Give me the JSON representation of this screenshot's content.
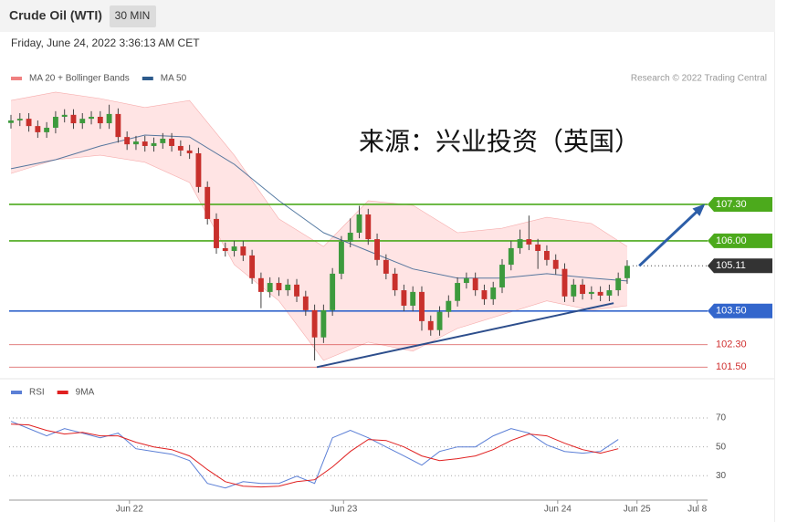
{
  "chart_data": [
    {
      "type": "candlestick",
      "title": "Crude Oil (WTI)",
      "timeframe": "30 MIN",
      "subtitle": "Friday, June 24, 2022 3:36:13 AM CET",
      "source": "Research © 2022 Trading Central",
      "annotation": "来源：兴业投资（英国）",
      "xlim": [
        0,
        78
      ],
      "ylim": [
        101.25,
        111.33
      ],
      "xticks": [
        {
          "value": 13.27,
          "label": "Jun 22"
        },
        {
          "value": 37.24,
          "label": "Jun 23"
        },
        {
          "value": 61.22,
          "label": "Jun 24"
        },
        {
          "value": 70.1,
          "label": "Jun 25"
        },
        {
          "value": 76.84,
          "label": "Jul 8"
        }
      ],
      "up_color": "#3d9a3d",
      "down_color": "#c8302c",
      "x": [
        0,
        1,
        2,
        3,
        4,
        5,
        6,
        7,
        8,
        9,
        10,
        11,
        12,
        13,
        14,
        15,
        16,
        17,
        18,
        19,
        20,
        21,
        22,
        23,
        24,
        25,
        26,
        27,
        28,
        29,
        30,
        31,
        32,
        33,
        34,
        35,
        36,
        37,
        38,
        39,
        40,
        41,
        42,
        43,
        44,
        45,
        46,
        47,
        48,
        49,
        50,
        51,
        52,
        53,
        54,
        55,
        56,
        57,
        58,
        59,
        60,
        61,
        62,
        63,
        64,
        65,
        66,
        67,
        68,
        69
      ],
      "open": [
        110.2,
        110.29,
        110.35,
        110.09,
        109.87,
        110.03,
        110.42,
        110.49,
        110.19,
        110.35,
        110.42,
        110.19,
        110.52,
        109.7,
        109.44,
        109.54,
        109.38,
        109.48,
        109.64,
        109.38,
        109.22,
        109.12,
        107.92,
        106.78,
        105.74,
        105.64,
        105.8,
        105.48,
        104.67,
        104.18,
        104.5,
        104.24,
        104.44,
        104.02,
        103.53,
        102.56,
        103.53,
        104.83,
        105.97,
        106.29,
        106.94,
        106.06,
        105.32,
        104.83,
        104.24,
        103.69,
        104.18,
        103.14,
        102.82,
        103.47,
        103.86,
        104.5,
        104.67,
        104.24,
        103.92,
        104.34,
        105.15,
        105.74,
        106.06,
        105.87,
        105.64,
        105.32,
        105.0,
        104.02,
        104.44,
        104.11,
        104.18,
        104.05,
        104.24,
        104.67
      ],
      "high": [
        110.49,
        110.55,
        110.55,
        110.29,
        110.23,
        110.62,
        110.69,
        110.69,
        110.55,
        110.62,
        110.62,
        110.85,
        110.72,
        109.9,
        109.74,
        109.74,
        109.68,
        109.84,
        109.84,
        109.58,
        109.42,
        109.32,
        108.12,
        106.98,
        105.94,
        106.0,
        106.0,
        105.68,
        104.87,
        104.7,
        104.7,
        104.64,
        104.64,
        104.22,
        103.73,
        103.73,
        105.03,
        106.17,
        106.8,
        107.25,
        107.14,
        106.26,
        105.52,
        105.03,
        104.44,
        104.38,
        104.38,
        103.34,
        103.67,
        104.06,
        104.7,
        104.87,
        104.87,
        104.44,
        104.54,
        105.35,
        106.0,
        106.4,
        106.9,
        106.07,
        105.84,
        105.52,
        105.2,
        104.64,
        104.64,
        104.38,
        104.38,
        104.44,
        104.87,
        105.31
      ],
      "low": [
        110.0,
        110.09,
        109.89,
        109.67,
        109.67,
        109.83,
        110.22,
        109.99,
        109.99,
        110.15,
        109.99,
        109.99,
        109.5,
        109.24,
        109.24,
        109.18,
        109.18,
        109.28,
        109.18,
        109.02,
        108.92,
        107.72,
        106.58,
        105.54,
        105.44,
        105.44,
        105.28,
        104.47,
        103.6,
        103.98,
        104.04,
        104.04,
        103.82,
        103.33,
        101.74,
        102.36,
        103.33,
        104.63,
        105.77,
        106.09,
        105.86,
        105.12,
        104.63,
        104.04,
        103.49,
        103.49,
        102.8,
        102.62,
        102.62,
        103.27,
        103.66,
        104.3,
        104.04,
        103.72,
        103.72,
        104.14,
        104.95,
        105.54,
        105.67,
        105.0,
        105.12,
        104.8,
        103.82,
        103.82,
        103.91,
        103.91,
        103.85,
        103.85,
        104.04,
        104.47
      ],
      "close": [
        110.29,
        110.35,
        110.09,
        109.87,
        110.03,
        110.42,
        110.49,
        110.19,
        110.35,
        110.42,
        110.19,
        110.52,
        109.7,
        109.44,
        109.54,
        109.38,
        109.48,
        109.64,
        109.38,
        109.22,
        109.12,
        107.92,
        106.78,
        105.74,
        105.64,
        105.8,
        105.48,
        104.67,
        104.18,
        104.5,
        104.24,
        104.44,
        104.02,
        103.53,
        102.56,
        103.53,
        104.83,
        105.97,
        106.29,
        106.94,
        106.06,
        105.32,
        104.83,
        104.24,
        103.69,
        104.18,
        103.14,
        102.82,
        103.47,
        103.86,
        104.5,
        104.67,
        104.24,
        103.92,
        104.34,
        105.15,
        105.74,
        106.06,
        105.87,
        105.64,
        105.32,
        105.0,
        104.02,
        104.44,
        104.11,
        104.18,
        104.05,
        104.24,
        104.67,
        105.11
      ],
      "series": [
        {
          "name": "MA 20 + Bollinger Bands",
          "color": "#f08080",
          "x": [
            0,
            5,
            10,
            15,
            20,
            25,
            30,
            35,
            40,
            45,
            50,
            55,
            60,
            65,
            69
          ],
          "upper": [
            111.0,
            111.3,
            111.07,
            110.75,
            111.0,
            109.05,
            106.78,
            105.8,
            107.43,
            107.27,
            106.29,
            106.45,
            106.84,
            106.62,
            105.8
          ],
          "lower": [
            108.4,
            108.89,
            109.05,
            108.8,
            108.08,
            105.15,
            103.86,
            101.74,
            102.39,
            102.07,
            102.88,
            103.37,
            103.86,
            103.53,
            103.69
          ]
        },
        {
          "name": "MA 50",
          "color": "#2d5b8c",
          "x": [
            0,
            5,
            10,
            15,
            20,
            25,
            30,
            35,
            40,
            45,
            50,
            55,
            60,
            65,
            69
          ],
          "values": [
            108.57,
            108.89,
            109.38,
            109.77,
            109.7,
            108.73,
            107.43,
            106.29,
            105.64,
            105.0,
            104.67,
            104.67,
            104.83,
            104.67,
            104.57
          ]
        }
      ],
      "levels": [
        {
          "value": 107.3,
          "label": "107.30",
          "color": "#4caa1c",
          "boxed": true
        },
        {
          "value": 106.0,
          "label": "106.00",
          "color": "#4caa1c",
          "boxed": true
        },
        {
          "value": 105.11,
          "label": "105.11",
          "color": "#333333",
          "boxed": true,
          "dotted": true
        },
        {
          "value": 103.5,
          "label": "103.50",
          "color": "#3366cc",
          "boxed": true
        },
        {
          "value": 102.3,
          "label": "102.30",
          "color": "#d03030",
          "boxed": false
        },
        {
          "value": 101.5,
          "label": "101.50",
          "color": "#d03030",
          "boxed": false
        }
      ],
      "trendlines": [
        {
          "x": [
            34.25,
            67.48
          ],
          "y": [
            101.5,
            103.78
          ],
          "color": "#2d4e8c",
          "arrow": false
        },
        {
          "x": [
            70.35,
            77.5
          ],
          "y": [
            105.11,
            107.25
          ],
          "color": "#2d5ea8",
          "arrow": true
        }
      ]
    },
    {
      "type": "line",
      "ylim": [
        15,
        81.4
      ],
      "yticks": [
        70,
        50,
        30
      ],
      "series": [
        {
          "name": "RSI",
          "color": "#5b7fd6",
          "x": [
            0,
            2,
            4,
            6,
            8,
            10,
            12,
            14,
            16,
            18,
            20,
            22,
            24,
            26,
            28,
            30,
            32,
            34,
            36,
            38,
            40,
            42,
            44,
            46,
            48,
            50,
            52,
            54,
            56,
            58,
            60,
            62,
            64,
            66,
            68
          ],
          "values": [
            67.7,
            62.7,
            57.6,
            62.7,
            59.5,
            56.3,
            59.5,
            48.7,
            46.8,
            44.9,
            40.5,
            24.7,
            21.5,
            25.9,
            24.7,
            24.7,
            29.7,
            24.7,
            56.3,
            61.4,
            56.3,
            50,
            43.7,
            37.3,
            46.8,
            50,
            50,
            57.6,
            62.7,
            59.5,
            51.3,
            46.8,
            45.6,
            46.8,
            55.1
          ]
        },
        {
          "name": "9MA",
          "color": "#e02020",
          "x": [
            0,
            2,
            4,
            6,
            8,
            10,
            12,
            14,
            16,
            18,
            20,
            22,
            24,
            26,
            28,
            30,
            32,
            34,
            36,
            38,
            40,
            42,
            44,
            46,
            48,
            50,
            52,
            54,
            56,
            58,
            60,
            62,
            64,
            66,
            68
          ],
          "values": [
            65.8,
            65.2,
            61.4,
            58.9,
            60.1,
            57.6,
            57.6,
            53.2,
            50,
            48.1,
            43.7,
            34.2,
            25.9,
            22.8,
            22.2,
            22.8,
            25.9,
            27.2,
            36.1,
            46.8,
            55.1,
            54.4,
            50,
            43.7,
            40.5,
            41.8,
            43.7,
            48.1,
            54.4,
            58.9,
            57.6,
            52.5,
            48.1,
            45.6,
            48.7
          ]
        }
      ]
    }
  ]
}
